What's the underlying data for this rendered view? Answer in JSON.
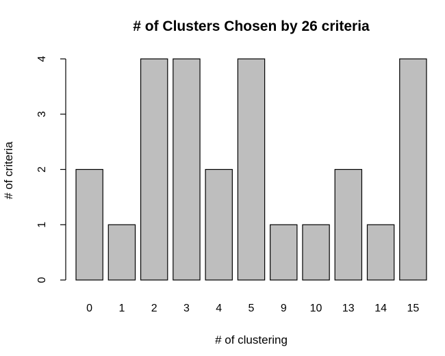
{
  "chart_data": {
    "type": "bar",
    "title": "# of Clusters Chosen by 26 criteria",
    "xlabel": "# of clustering",
    "ylabel": "# of criteria",
    "categories": [
      "0",
      "1",
      "2",
      "3",
      "4",
      "5",
      "9",
      "10",
      "13",
      "14",
      "15"
    ],
    "values": [
      2,
      1,
      4,
      4,
      2,
      4,
      1,
      1,
      2,
      1,
      4
    ],
    "ylim": [
      0,
      4
    ],
    "yticks": [
      "0",
      "1",
      "2",
      "3",
      "4"
    ],
    "grid": false,
    "legend": "none",
    "colors": {
      "bar_fill": "#bebebe",
      "bar_stroke": "#000000",
      "background": "#ffffff"
    }
  }
}
